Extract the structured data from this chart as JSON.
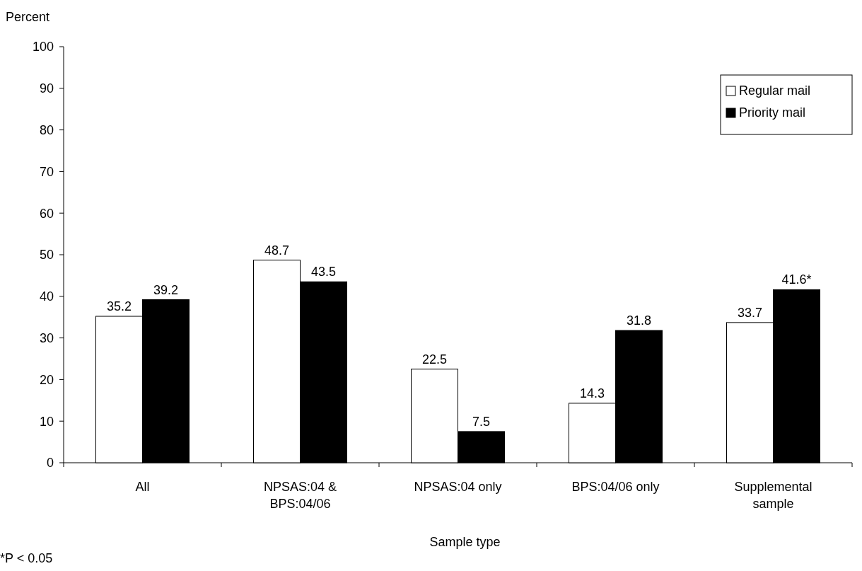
{
  "chart_data": {
    "type": "bar",
    "ylabel": "Percent",
    "xlabel": "Sample type",
    "categories": [
      "All",
      "NPSAS:04 &\nBPS:04/06",
      "NPSAS:04 only",
      "BPS:04/06 only",
      "Supplemental\nsample"
    ],
    "series": [
      {
        "name": "Regular mail",
        "color": "#ffffff",
        "values": [
          35.2,
          48.7,
          22.5,
          14.3,
          33.7
        ],
        "value_labels": [
          "35.2",
          "48.7",
          "22.5",
          "14.3",
          "33.7"
        ]
      },
      {
        "name": "Priority mail",
        "color": "#000000",
        "values": [
          39.2,
          43.5,
          7.5,
          31.8,
          41.6
        ],
        "value_labels": [
          "39.2",
          "43.5",
          "7.5",
          "31.8",
          "41.6*"
        ]
      }
    ],
    "ylim": [
      0,
      100
    ],
    "yticks": [
      0,
      10,
      20,
      30,
      40,
      50,
      60,
      70,
      80,
      90,
      100
    ],
    "grid": false,
    "legend": "top right",
    "annotations": [
      "*P < 0.05"
    ]
  }
}
